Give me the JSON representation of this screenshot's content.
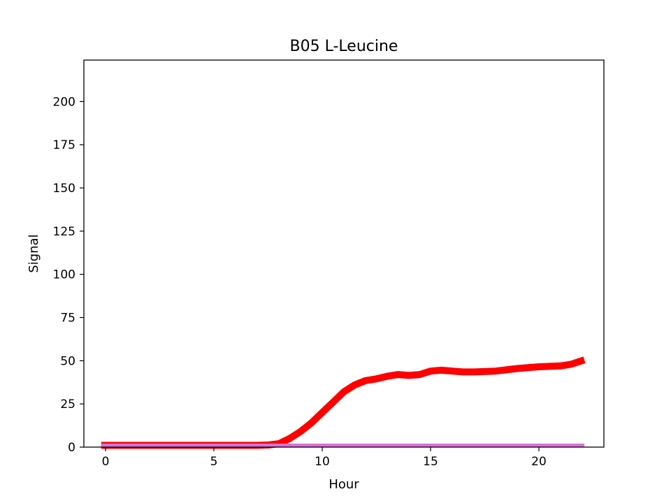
{
  "chart_data": {
    "type": "line",
    "title": "B05 L-Leucine",
    "xlabel": "Hour",
    "ylabel": "Signal",
    "xlim": [
      -1,
      23
    ],
    "ylim": [
      0,
      224
    ],
    "xticks": [
      0,
      5,
      10,
      15,
      20
    ],
    "yticks": [
      0,
      25,
      50,
      75,
      100,
      125,
      150,
      175,
      200
    ],
    "grid": false,
    "series": [
      {
        "color": "#ff0000",
        "x": [
          -0.2,
          2,
          4,
          6,
          7,
          7.5,
          8,
          8.5,
          9,
          9.5,
          10,
          10.5,
          11,
          11.5,
          12,
          12.5,
          13,
          13.5,
          14,
          14.5,
          15,
          15.5,
          16,
          16.5,
          17,
          18,
          19,
          20,
          21,
          21.5,
          22.1
        ],
        "y": [
          1,
          1,
          1,
          1,
          1,
          1.2,
          2,
          5,
          9,
          14,
          20,
          26,
          32,
          36,
          38.5,
          39.5,
          41,
          42,
          41.5,
          42,
          44,
          44.5,
          44,
          43.5,
          43.5,
          44,
          45.5,
          46.5,
          47,
          48,
          50.5
        ]
      },
      {
        "color": "#da70d6",
        "x": [
          -0.2,
          22.1
        ],
        "y": [
          1,
          1
        ]
      }
    ]
  }
}
